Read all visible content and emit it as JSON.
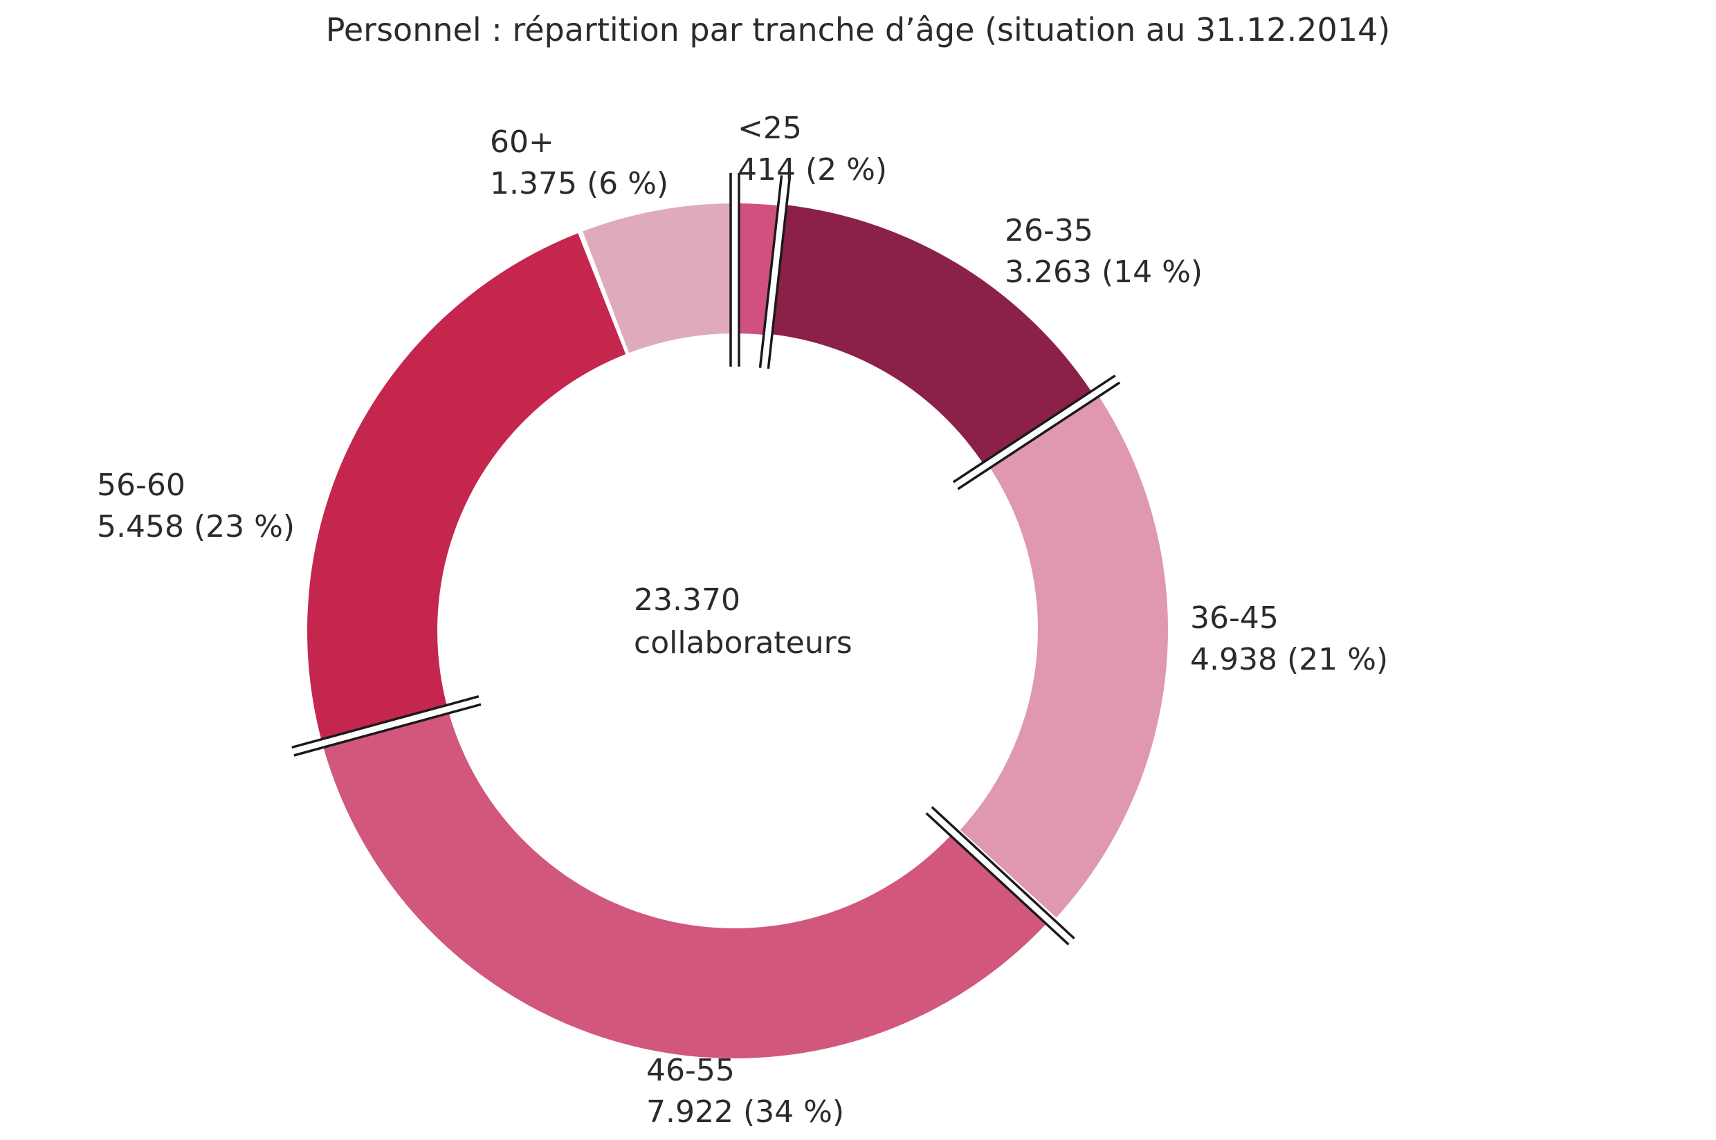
{
  "chart_data": {
    "type": "pie",
    "variant": "donut",
    "title": "Personnel : répartition par tranche d’âge (situation au 31.12.2014)",
    "center_label": {
      "value": "23.370",
      "text": "collaborateurs"
    },
    "total": 23370,
    "legend": "none",
    "slices": [
      {
        "category": "<25",
        "value": 414,
        "value_label": "414",
        "percent_label": "2 %",
        "color": "#d1507f"
      },
      {
        "category": "26-35",
        "value": 3263,
        "value_label": "3.263",
        "percent_label": "14 %",
        "color": "#8b2048"
      },
      {
        "category": "36-45",
        "value": 4938,
        "value_label": "4.938",
        "percent_label": "21 %",
        "color": "#df97b2"
      },
      {
        "category": "46-55",
        "value": 7922,
        "value_label": "7.922",
        "percent_label": "34 %",
        "color": "#d2577c"
      },
      {
        "category": "56-60",
        "value": 5458,
        "value_label": "5.458",
        "percent_label": "23 %",
        "color": "#c4264e"
      },
      {
        "category": "60+",
        "value": 1375,
        "value_label": "1.375",
        "percent_label": "6 %",
        "color": "#dfabbc"
      }
    ]
  }
}
